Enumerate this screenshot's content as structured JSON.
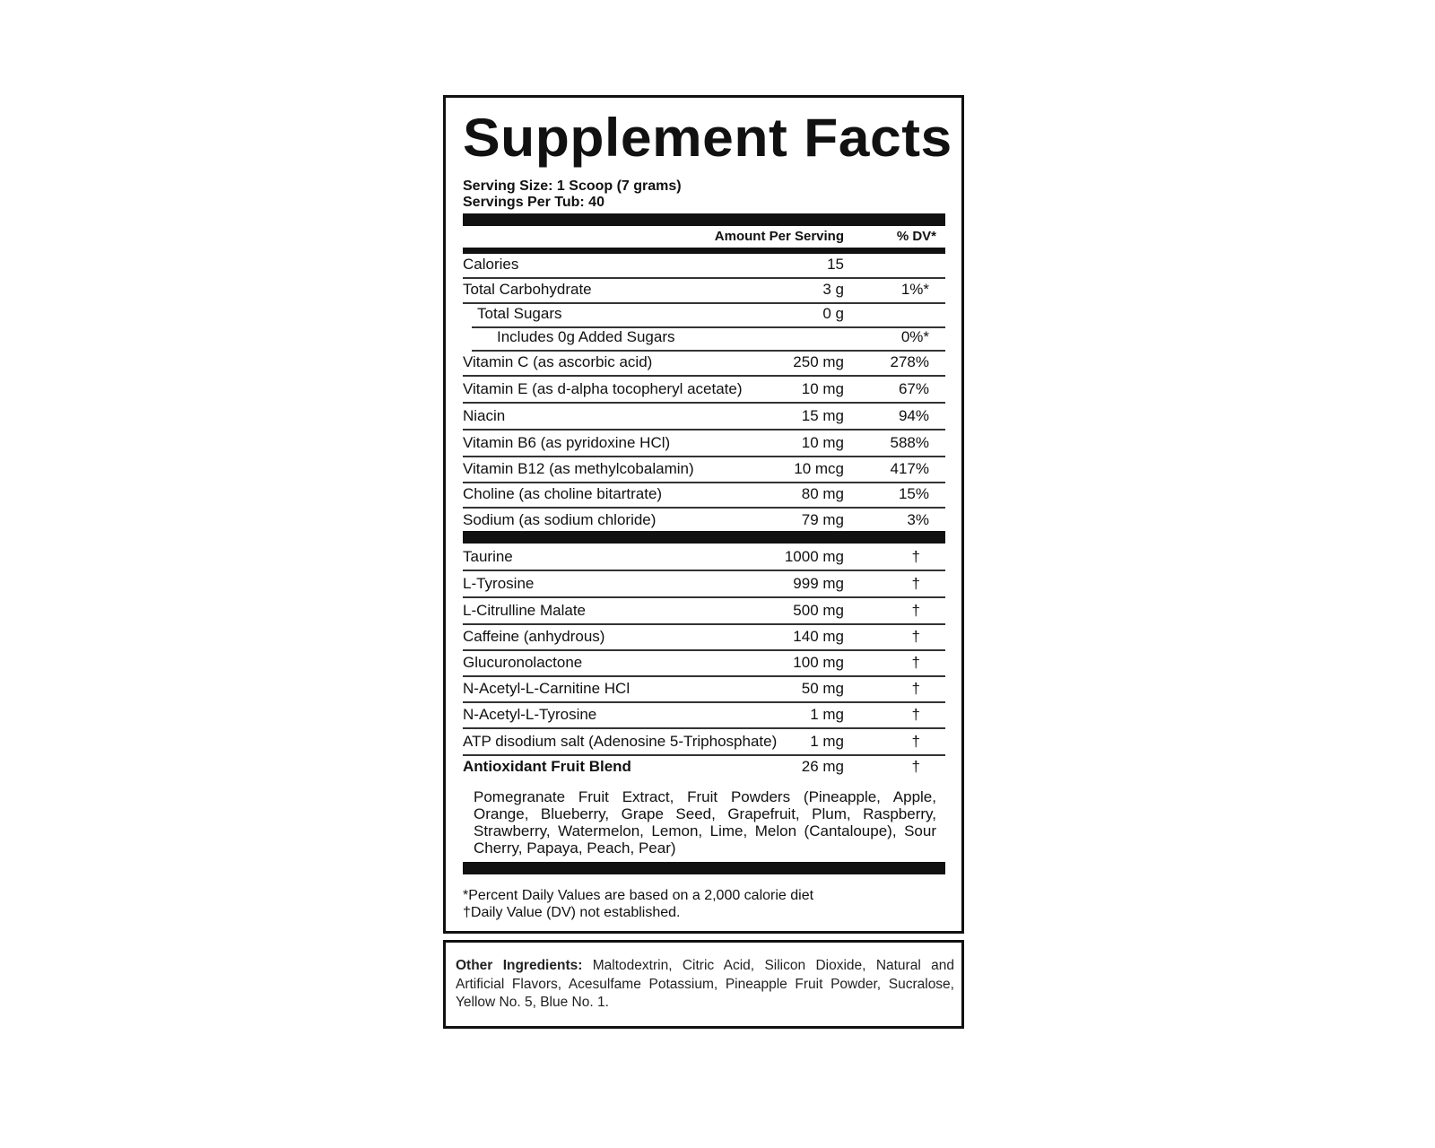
{
  "title": "Supplement Facts",
  "serving_size": "Serving Size: 1 Scoop (7 grams)",
  "servings_per": "Servings Per Tub: 40",
  "header": {
    "amount": "Amount Per Serving",
    "dv": "% DV*"
  },
  "nutrients": [
    {
      "name": "Calories",
      "amount": "15",
      "dv": ""
    },
    {
      "name": "Total Carbohydrate",
      "amount": "3 g",
      "dv": "1%*"
    },
    {
      "name": "Total Sugars",
      "amount": "0 g",
      "dv": ""
    },
    {
      "name": "Includes 0g Added Sugars",
      "amount": "",
      "dv": "0%*"
    },
    {
      "name": "Vitamin C (as ascorbic acid)",
      "amount": "250 mg",
      "dv": "278%"
    },
    {
      "name": "Vitamin E (as d-alpha tocopheryl acetate)",
      "amount": "10 mg",
      "dv": "67%"
    },
    {
      "name": "Niacin",
      "amount": "15 mg",
      "dv": "94%"
    },
    {
      "name": "Vitamin B6 (as pyridoxine HCl)",
      "amount": "10 mg",
      "dv": "588%"
    },
    {
      "name": "Vitamin B12 (as methylcobalamin)",
      "amount": "10 mcg",
      "dv": "417%"
    },
    {
      "name": "Choline (as choline bitartrate)",
      "amount": "80 mg",
      "dv": "15%"
    },
    {
      "name": "Sodium (as sodium chloride)",
      "amount": "79 mg",
      "dv": "3%"
    }
  ],
  "ingredients": [
    {
      "name": "Taurine",
      "amount": "1000 mg",
      "dv": "†"
    },
    {
      "name": "L-Tyrosine",
      "amount": "999 mg",
      "dv": "†"
    },
    {
      "name": "L-Citrulline Malate",
      "amount": "500 mg",
      "dv": "†"
    },
    {
      "name": "Caffeine (anhydrous)",
      "amount": "140 mg",
      "dv": "†"
    },
    {
      "name": "Glucuronolactone",
      "amount": "100 mg",
      "dv": "†"
    },
    {
      "name": "N-Acetyl-L-Carnitine HCl",
      "amount": "50 mg",
      "dv": "†"
    },
    {
      "name": "N-Acetyl-L-Tyrosine",
      "amount": "1 mg",
      "dv": "†"
    },
    {
      "name": "ATP disodium salt (Adenosine 5-Triphosphate)",
      "amount": "1 mg",
      "dv": "†"
    },
    {
      "name": "Antioxidant Fruit Blend",
      "amount": "26 mg",
      "dv": "†"
    }
  ],
  "blend_description": "Pomegranate Fruit Extract, Fruit Powders (Pineapple, Apple, Orange, Blueberry, Grape Seed, Grapefruit, Plum, Raspberry, Strawberry, Watermelon, Lemon, Lime, Melon (Cantaloupe), Sour Cherry, Papaya, Peach, Pear)",
  "footnotes": [
    "*Percent Daily Values are based on a 2,000 calorie diet",
    "†Daily Value (DV) not established."
  ],
  "other_ingredients": {
    "label": "Other Ingredients:",
    "text": "Maltodextrin, Citric Acid, Silicon Dioxide, Natural and Artificial Flavors, Acesulfame Potassium, Pineapple Fruit Powder, Sucralose, Yellow No. 5, Blue No. 1."
  }
}
